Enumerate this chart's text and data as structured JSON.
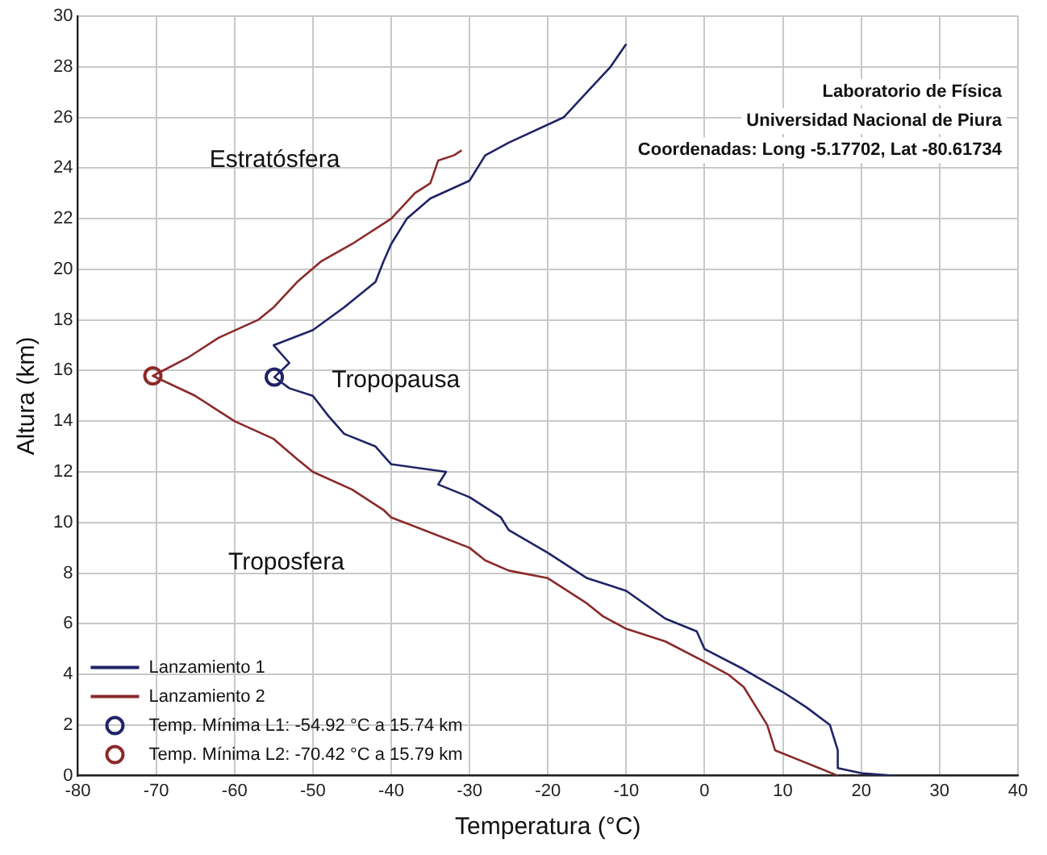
{
  "chart_data": {
    "type": "line",
    "xlabel": "Temperatura (°C)",
    "ylabel": "Altura (km)",
    "xlim": [
      -80,
      40
    ],
    "xticks": [
      -80,
      -70,
      -60,
      -50,
      -40,
      -30,
      -20,
      -10,
      0,
      10,
      20,
      30,
      40
    ],
    "ylim": [
      0,
      30
    ],
    "yticks": [
      0,
      2,
      4,
      6,
      8,
      10,
      12,
      14,
      16,
      18,
      20,
      22,
      24,
      26,
      28,
      30
    ],
    "grid": true,
    "legend": "bottom left",
    "line_style": "solid",
    "series": [
      {
        "name": "Lanzamiento 1",
        "color": "#1f2466",
        "marker": "none",
        "x": [
          24,
          20,
          17,
          17,
          16,
          13,
          10,
          5,
          0,
          -1,
          -5,
          -10,
          -15,
          -20,
          -25,
          -26,
          -30,
          -34,
          -33,
          -40,
          -42,
          -46,
          -48,
          -50,
          -53,
          -54.92,
          -53,
          -55,
          -50,
          -46,
          -42,
          -41,
          -40,
          -38,
          -35,
          -30,
          -28,
          -25,
          -18,
          -15,
          -12,
          -10
        ],
        "values": [
          0,
          0.1,
          0.3,
          1,
          2,
          2.7,
          3.3,
          4.2,
          5,
          5.7,
          6.2,
          7.3,
          7.8,
          8.8,
          9.7,
          10.2,
          11,
          11.5,
          12,
          12.3,
          13,
          13.5,
          14.2,
          15,
          15.3,
          15.74,
          16.3,
          17,
          17.6,
          18.5,
          19.5,
          20.3,
          21,
          22,
          22.8,
          23.5,
          24.5,
          25,
          26,
          27,
          28,
          28.9
        ]
      },
      {
        "name": "Lanzamiento 2",
        "color": "#8b2a2a",
        "marker": "none",
        "x": [
          17,
          13,
          9,
          8,
          7,
          5,
          3,
          0,
          -5,
          -10,
          -13,
          -15,
          -20,
          -25,
          -28,
          -30,
          -35,
          -40,
          -41,
          -45,
          -50,
          -52,
          -55,
          -60,
          -65,
          -70.42,
          -66,
          -62,
          -57,
          -55,
          -52,
          -49,
          -45,
          -40,
          -37,
          -35,
          -34,
          -32,
          -31
        ],
        "values": [
          0,
          0.5,
          1,
          2,
          2.5,
          3.5,
          4,
          4.5,
          5.3,
          5.8,
          6.3,
          6.8,
          7.8,
          8.1,
          8.5,
          9,
          9.6,
          10.2,
          10.5,
          11.3,
          12,
          12.5,
          13.3,
          14,
          15,
          15.79,
          16.5,
          17.3,
          18,
          18.5,
          19.5,
          20.3,
          21,
          22,
          23,
          23.4,
          24.3,
          24.5,
          24.7
        ]
      },
      {
        "name": "Temp. Mínima L1: -54.92 °C a 15.74 km",
        "type": "scatter",
        "color": "#1f2466",
        "marker": "circle",
        "x": [
          -54.92
        ],
        "values": [
          15.74
        ]
      },
      {
        "name": "Temp. Mínima L2: -70.42 °C a 15.79 km",
        "type": "scatter",
        "color": "#8b2a2a",
        "marker": "circle",
        "x": [
          -70.42
        ],
        "values": [
          15.79
        ]
      }
    ],
    "annotations": [
      "Estratósfera",
      "Tropopausa",
      "Troposfera",
      "Laboratorio de Física",
      "Universidad Nacional de Piura",
      "Coordenadas: Long -5.17702, Lat -80.61734"
    ]
  }
}
